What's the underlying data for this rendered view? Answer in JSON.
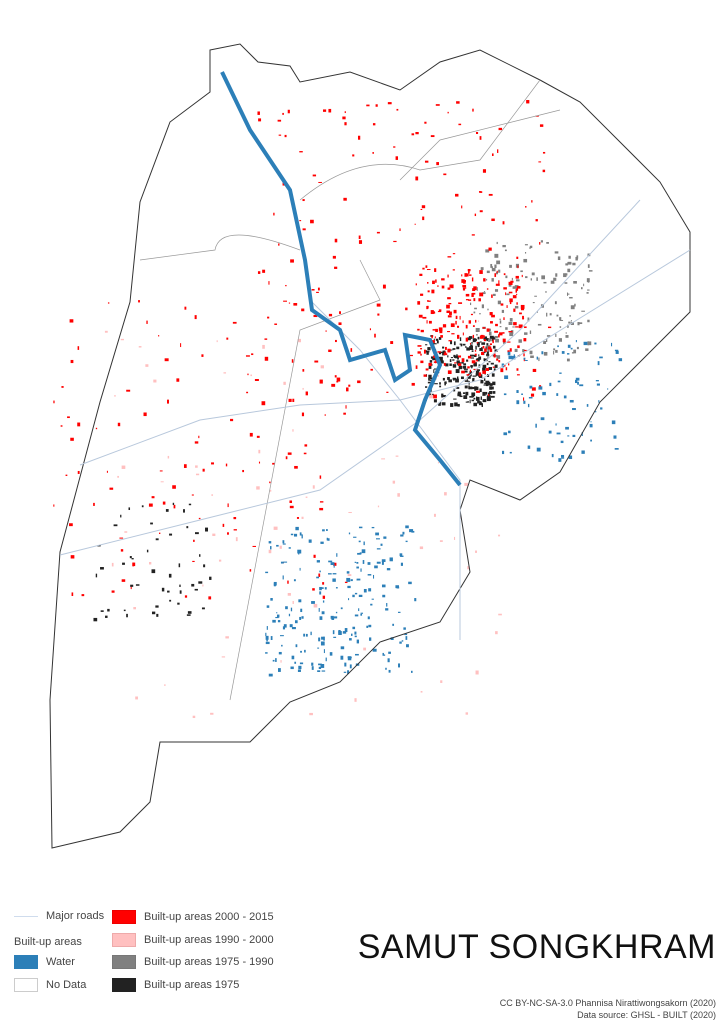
{
  "map": {
    "title": "SAMUT SONGKHRAM",
    "colors": {
      "boundary": "#333333",
      "district": "#999999",
      "road": "#b8c8dc",
      "water": "#2c7fb8",
      "built_2000_2015": "#ff0000",
      "built_1990_2000": "#ffc0c0",
      "built_1975_1990": "#808080",
      "built_1975": "#222222"
    }
  },
  "legend": {
    "roads_label": "Major roads",
    "group_label": "Built-up areas",
    "water_label": "Water",
    "nodata_label": "No Data",
    "b2000_label": "Built-up areas 2000 - 2015",
    "b1990_label": "Built-up areas 1990 - 2000",
    "b1975_1990_label": "Built-up areas 1975 - 1990",
    "b1975_label": "Built-up areas 1975"
  },
  "credits": {
    "license": "CC BY-NC-SA-3.0 Phannisa Nirattiwongsakorn (2020)",
    "source": "Data source: GHSL - BUILT (2020)"
  }
}
